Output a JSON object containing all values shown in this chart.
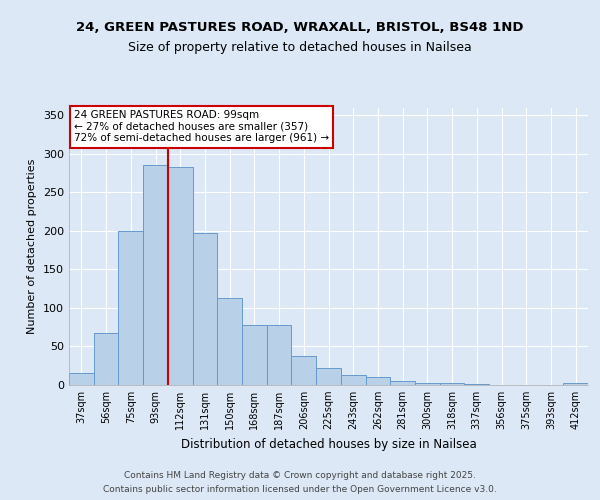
{
  "title1": "24, GREEN PASTURES ROAD, WRAXALL, BRISTOL, BS48 1ND",
  "title2": "Size of property relative to detached houses in Nailsea",
  "xlabel": "Distribution of detached houses by size in Nailsea",
  "ylabel": "Number of detached properties",
  "bin_labels": [
    "37sqm",
    "56sqm",
    "75sqm",
    "93sqm",
    "112sqm",
    "131sqm",
    "150sqm",
    "168sqm",
    "187sqm",
    "206sqm",
    "225sqm",
    "243sqm",
    "262sqm",
    "281sqm",
    "300sqm",
    "318sqm",
    "337sqm",
    "356sqm",
    "375sqm",
    "393sqm",
    "412sqm"
  ],
  "bar_values": [
    15,
    68,
    200,
    285,
    283,
    197,
    113,
    78,
    78,
    38,
    22,
    13,
    10,
    5,
    3,
    2,
    1,
    0,
    0,
    0,
    2
  ],
  "bar_color": "#b8d0e8",
  "bar_edge_color": "#6699cc",
  "property_line_bin": 3,
  "property_line_color": "#cc0000",
  "annotation_line1": "24 GREEN PASTURES ROAD: 99sqm",
  "annotation_line2": "← 27% of detached houses are smaller (357)",
  "annotation_line3": "72% of semi-detached houses are larger (961) →",
  "annotation_box_color": "#ffffff",
  "annotation_box_edge": "#cc0000",
  "ylim": [
    0,
    360
  ],
  "yticks": [
    0,
    50,
    100,
    150,
    200,
    250,
    300,
    350
  ],
  "footer1": "Contains HM Land Registry data © Crown copyright and database right 2025.",
  "footer2": "Contains public sector information licensed under the Open Government Licence v3.0.",
  "bg_color": "#dce8f5",
  "plot_bg_color": "#dce8f5",
  "grid_color": "#ffffff",
  "title1_fontsize": 9.5,
  "title2_fontsize": 9
}
